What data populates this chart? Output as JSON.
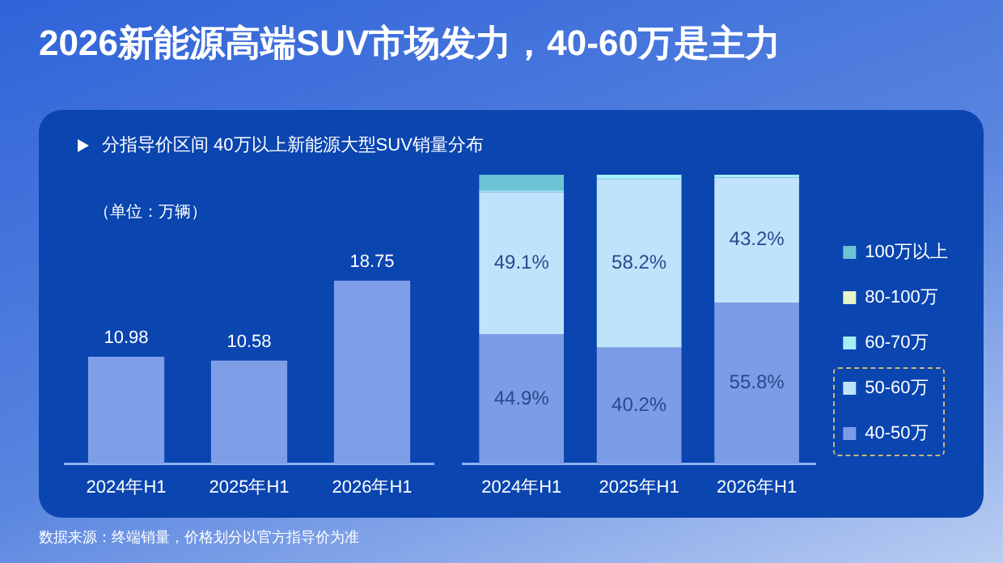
{
  "chart_data": [
    {
      "type": "bar",
      "title": "2026新能源高端SUV市场发力，40-60万是主力",
      "subtitle": "分指导价区间 40万以上新能源大型SUV销量分布",
      "annotations": [
        "（单位：万辆）",
        "数据来源：终端销量，价格划分以官方指导价为准"
      ],
      "categories": [
        "2024年H1",
        "2025年H1",
        "2026年H1"
      ],
      "values": [
        10.98,
        10.58,
        18.75
      ],
      "color": "#7f9ee8",
      "data_labels": true
    },
    {
      "type": "bar",
      "stacked": true,
      "legend": "right",
      "categories": [
        "2024年H1",
        "2025年H1",
        "2026年H1"
      ],
      "series": [
        {
          "name": "40-50万",
          "color": "#7b9ce6",
          "values": [
            44.9,
            40.2,
            55.8
          ],
          "value_labels": [
            "44.9%",
            "40.2%",
            "55.8%"
          ]
        },
        {
          "name": "50-60万",
          "color": "#bfe3fb",
          "values": [
            49.1,
            58.2,
            43.2
          ],
          "value_labels": [
            "49.1%",
            "58.2%",
            "43.2%"
          ]
        },
        {
          "name": "60-70万",
          "color": "#a5eef6",
          "values": [
            0.6,
            1.6,
            1.0
          ]
        },
        {
          "name": "80-100万",
          "color": "#e6f5c8",
          "values": [
            0,
            0,
            0
          ]
        },
        {
          "name": "100万以上",
          "color": "#6cc3d6",
          "values": [
            5.4,
            0,
            0
          ]
        }
      ]
    }
  ]
}
